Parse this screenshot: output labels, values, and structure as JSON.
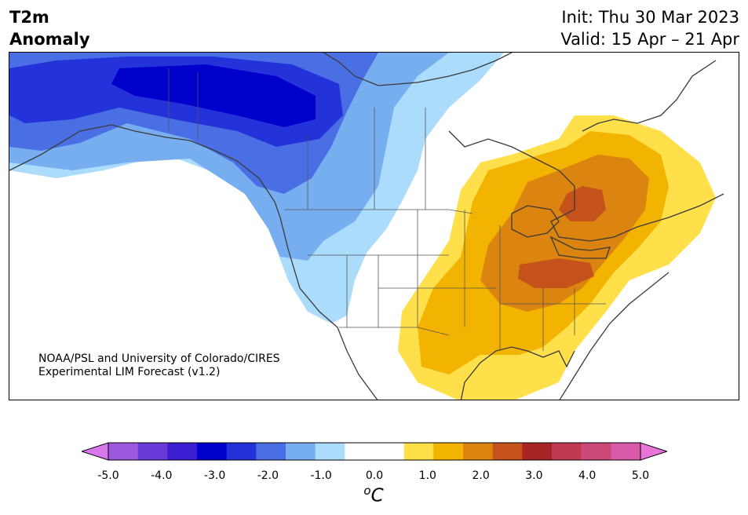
{
  "title": {
    "line1": "T2m",
    "line2": "Anomaly"
  },
  "dates": {
    "init": "Init: Thu 30 Mar 2023",
    "valid": "Valid: 15 Apr – 21 Apr"
  },
  "credit": {
    "line1": "NOAA/PSL and University of Colorado/CIRES",
    "line2": "Experimental LIM Forecast (v1.2)"
  },
  "colorbar": {
    "units": "C",
    "units_prefix": "o",
    "tick_labels": [
      "-5.0",
      "-4.0",
      "-3.0",
      "-2.0",
      "-1.0",
      "0.0",
      "1.0",
      "2.0",
      "3.0",
      "4.0",
      "5.0"
    ],
    "colors": [
      "#d876ec",
      "#9d58e0",
      "#6a3ad9",
      "#3a1fd2",
      "#0000cc",
      "#2432d9",
      "#4a6fe4",
      "#77aef0",
      "#acdcfb",
      "#ffffff",
      "#ffffff",
      "#ffe04a",
      "#f2b400",
      "#dc8410",
      "#c4521a",
      "#a82424",
      "#c13a52",
      "#cc4a7a",
      "#d85aa8",
      "#e876d8"
    ]
  },
  "colors": {
    "blue_strong": "#0000cc",
    "blue_mid": "#4a6fe4",
    "blue_light": "#77aef0",
    "blue_pale": "#acdcfb",
    "yellow": "#ffe04a",
    "orange_light": "#f2b400",
    "orange": "#dc8410",
    "orange_dark": "#c4521a"
  }
}
